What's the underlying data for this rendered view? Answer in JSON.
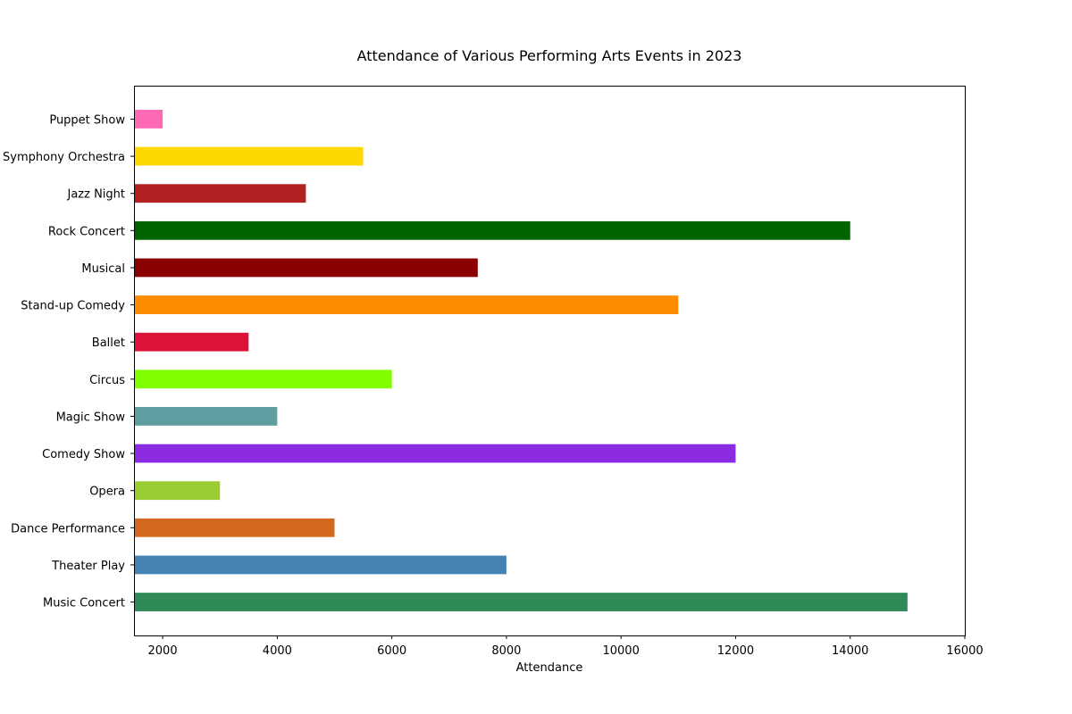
{
  "chart_data": {
    "type": "bar",
    "orientation": "horizontal",
    "title": "Attendance of Various Performing Arts Events in 2023",
    "xlabel": "Attendance",
    "ylabel": "",
    "xlim": [
      1500,
      16000
    ],
    "xticks": [
      2000,
      4000,
      6000,
      8000,
      10000,
      12000,
      14000,
      16000
    ],
    "grid": false,
    "categories": [
      "Music Concert",
      "Theater Play",
      "Dance Performance",
      "Opera",
      "Comedy Show",
      "Magic Show",
      "Circus",
      "Ballet",
      "Stand-up Comedy",
      "Musical",
      "Rock Concert",
      "Jazz Night",
      "Symphony Orchestra",
      "Puppet Show"
    ],
    "values": [
      15000,
      8000,
      5000,
      3000,
      12000,
      4000,
      6000,
      3500,
      11000,
      7500,
      14000,
      4500,
      5500,
      2000
    ],
    "colors": [
      "#2e8b57",
      "#4682b4",
      "#d2691e",
      "#9acd32",
      "#8a2be2",
      "#5f9ea0",
      "#7fff00",
      "#dc143c",
      "#ff8c00",
      "#8b0000",
      "#006400",
      "#b22222",
      "#ffd700",
      "#ff69b4"
    ]
  }
}
